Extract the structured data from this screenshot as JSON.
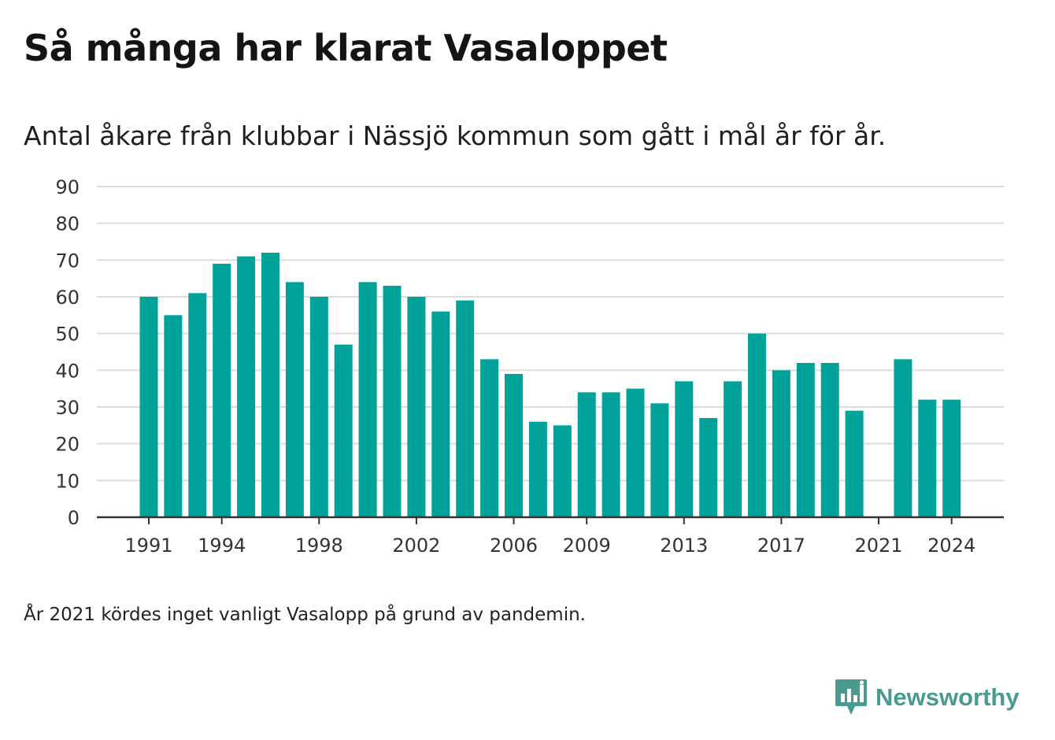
{
  "header": {
    "title": "Så många har klarat Vasaloppet",
    "subtitle": "Antal åkare från klubbar i Nässjö kommun som gått i mål år för år."
  },
  "footnote": "År 2021 kördes inget vanligt Vasalopp på grund av pandemin.",
  "brand": {
    "name": "Newsworthy",
    "icon": "newsworthy-logo-icon",
    "color": "#4a9a92"
  },
  "chart_data": {
    "type": "bar",
    "title": "",
    "xlabel": "",
    "ylabel": "",
    "ylim": [
      0,
      90
    ],
    "y_ticks": [
      0,
      10,
      20,
      30,
      40,
      50,
      60,
      70,
      80,
      90
    ],
    "x_tick_labels": [
      "1991",
      "1994",
      "1998",
      "2002",
      "2006",
      "2009",
      "2013",
      "2017",
      "2021",
      "2024"
    ],
    "grid": true,
    "bar_color": "#00a29a",
    "categories": [
      "1991",
      "1992",
      "1993",
      "1994",
      "1995",
      "1996",
      "1997",
      "1998",
      "1999",
      "2000",
      "2001",
      "2002",
      "2003",
      "2004",
      "2005",
      "2006",
      "2007",
      "2008",
      "2009",
      "2010",
      "2011",
      "2012",
      "2013",
      "2014",
      "2015",
      "2016",
      "2017",
      "2018",
      "2019",
      "2020",
      "2021",
      "2022",
      "2023",
      "2024"
    ],
    "values": [
      60,
      55,
      61,
      69,
      71,
      72,
      64,
      60,
      47,
      64,
      63,
      60,
      56,
      59,
      43,
      39,
      26,
      25,
      34,
      34,
      35,
      31,
      37,
      27,
      37,
      50,
      40,
      42,
      42,
      29,
      null,
      43,
      32,
      32
    ]
  }
}
